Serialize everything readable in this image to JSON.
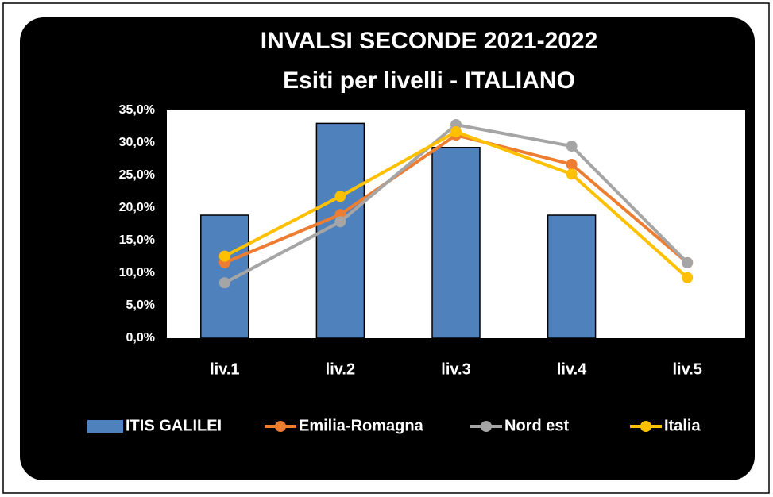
{
  "chart_data": {
    "type": "bar",
    "title": "INVALSI SECONDE 2021-2022",
    "subtitle": "Esiti per livelli - ITALIANO",
    "categories": [
      "liv.1",
      "liv.2",
      "liv.3",
      "liv.4",
      "liv.5"
    ],
    "series": [
      {
        "name": "ITIS GALILEI",
        "type": "bar",
        "color": "#4f81bd",
        "values": [
          18.9,
          33.0,
          29.3,
          18.9,
          0
        ]
      },
      {
        "name": "Emilia-Romagna",
        "type": "line",
        "color": "#ed7d31",
        "values": [
          11.6,
          19.0,
          31.2,
          26.7,
          11.6
        ]
      },
      {
        "name": "Nord est",
        "type": "line",
        "color": "#a5a5a5",
        "values": [
          8.5,
          17.9,
          32.8,
          29.5,
          11.6
        ]
      },
      {
        "name": "Italia",
        "type": "line",
        "color": "#ffc000",
        "values": [
          12.6,
          21.8,
          31.7,
          25.2,
          9.3
        ]
      }
    ],
    "ylim": [
      0,
      35
    ],
    "yticks": [
      {
        "value": 0,
        "label": "0,0%"
      },
      {
        "value": 5,
        "label": "5,0%"
      },
      {
        "value": 10,
        "label": "10,0%"
      },
      {
        "value": 15,
        "label": "15,0%"
      },
      {
        "value": 20,
        "label": "20,0%"
      },
      {
        "value": 25,
        "label": "25,0%"
      },
      {
        "value": 30,
        "label": "30,0%"
      },
      {
        "value": 35,
        "label": "35,0%"
      }
    ],
    "grid": false,
    "legend": "bottom"
  }
}
